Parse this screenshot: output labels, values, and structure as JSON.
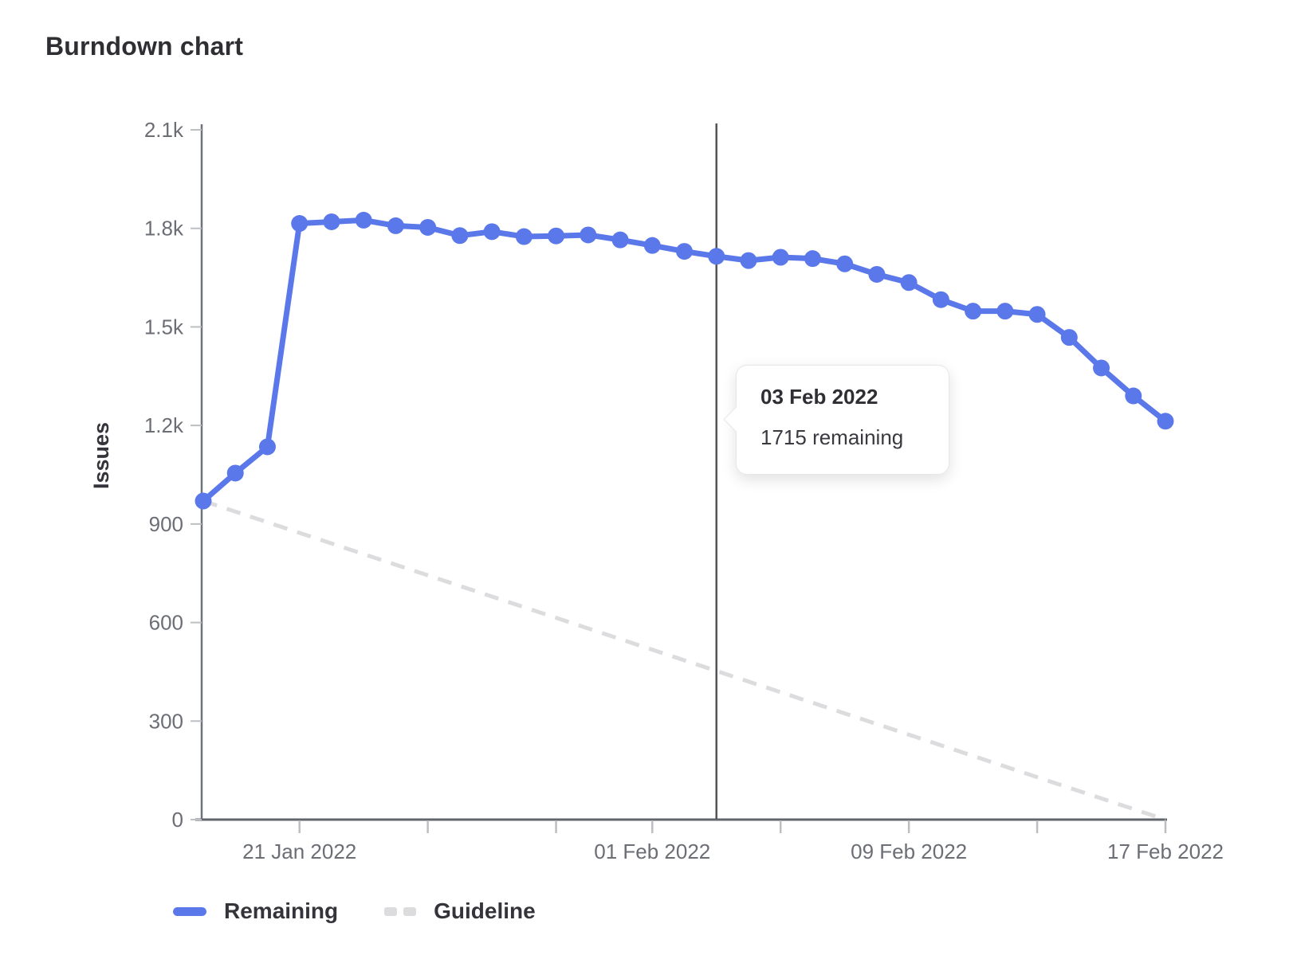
{
  "page": {
    "title": "Burndown chart"
  },
  "tooltip": {
    "title": "03 Feb 2022",
    "body": "1715 remaining"
  },
  "legend": {
    "remaining_label": "Remaining",
    "guideline_label": "Guideline"
  },
  "colors": {
    "remaining": "#5b78ea",
    "guideline": "#dcdcde",
    "today_line": "#525257",
    "axis_line": "#6e737a",
    "x_axis_line": "#61656c",
    "tick_mark": "#bdbec2",
    "tick_label": "#6b6e74",
    "text_dark": "#2f2e33"
  },
  "chart_data": {
    "type": "line",
    "title": "Burndown chart",
    "xlabel": "",
    "ylabel": "Issues",
    "ylim": [
      0,
      2100
    ],
    "grid": false,
    "legend_position": "bottom-left",
    "x_range": [
      "18 Jan 2022",
      "17 Feb 2022"
    ],
    "y_ticks": [
      {
        "value": 0,
        "label": "0"
      },
      {
        "value": 300,
        "label": "300"
      },
      {
        "value": 600,
        "label": "600"
      },
      {
        "value": 900,
        "label": "900"
      },
      {
        "value": 1200,
        "label": "1.2k"
      },
      {
        "value": 1500,
        "label": "1.5k"
      },
      {
        "value": 1800,
        "label": "1.8k"
      },
      {
        "value": 2100,
        "label": "2.1k"
      }
    ],
    "x_ticks": [
      {
        "day": 3,
        "label": "21 Jan 2022"
      },
      {
        "day": 7,
        "label": ""
      },
      {
        "day": 11,
        "label": ""
      },
      {
        "day": 14,
        "label": "01 Feb 2022"
      },
      {
        "day": 18,
        "label": ""
      },
      {
        "day": 22,
        "label": "09 Feb 2022"
      },
      {
        "day": 26,
        "label": ""
      },
      {
        "day": 30,
        "label": "17 Feb 2022"
      }
    ],
    "today_marker": {
      "date": "03 Feb 2022",
      "day": 16,
      "value": 1715
    },
    "series": [
      {
        "name": "Remaining",
        "style": "solid",
        "dates": [
          "18 Jan 2022",
          "19 Jan 2022",
          "20 Jan 2022",
          "21 Jan 2022",
          "22 Jan 2022",
          "23 Jan 2022",
          "24 Jan 2022",
          "25 Jan 2022",
          "26 Jan 2022",
          "27 Jan 2022",
          "28 Jan 2022",
          "29 Jan 2022",
          "30 Jan 2022",
          "31 Jan 2022",
          "01 Feb 2022",
          "02 Feb 2022",
          "03 Feb 2022",
          "04 Feb 2022",
          "05 Feb 2022",
          "06 Feb 2022",
          "07 Feb 2022",
          "08 Feb 2022",
          "09 Feb 2022",
          "10 Feb 2022",
          "11 Feb 2022",
          "12 Feb 2022",
          "13 Feb 2022",
          "14 Feb 2022",
          "15 Feb 2022",
          "16 Feb 2022",
          "17 Feb 2022"
        ],
        "days": [
          0,
          1,
          2,
          3,
          4,
          5,
          6,
          7,
          8,
          9,
          10,
          11,
          12,
          13,
          14,
          15,
          16,
          17,
          18,
          19,
          20,
          21,
          22,
          23,
          24,
          25,
          26,
          27,
          28,
          29,
          30
        ],
        "values": [
          970,
          1055,
          1135,
          1815,
          1820,
          1825,
          1808,
          1803,
          1778,
          1790,
          1775,
          1777,
          1780,
          1765,
          1748,
          1730,
          1715,
          1702,
          1712,
          1708,
          1692,
          1660,
          1635,
          1583,
          1548,
          1548,
          1538,
          1468,
          1375,
          1290,
          1213
        ]
      },
      {
        "name": "Guideline",
        "style": "dashed",
        "dates": [
          "18 Jan 2022",
          "17 Feb 2022"
        ],
        "days": [
          0,
          30
        ],
        "values": [
          970,
          0
        ]
      }
    ]
  }
}
